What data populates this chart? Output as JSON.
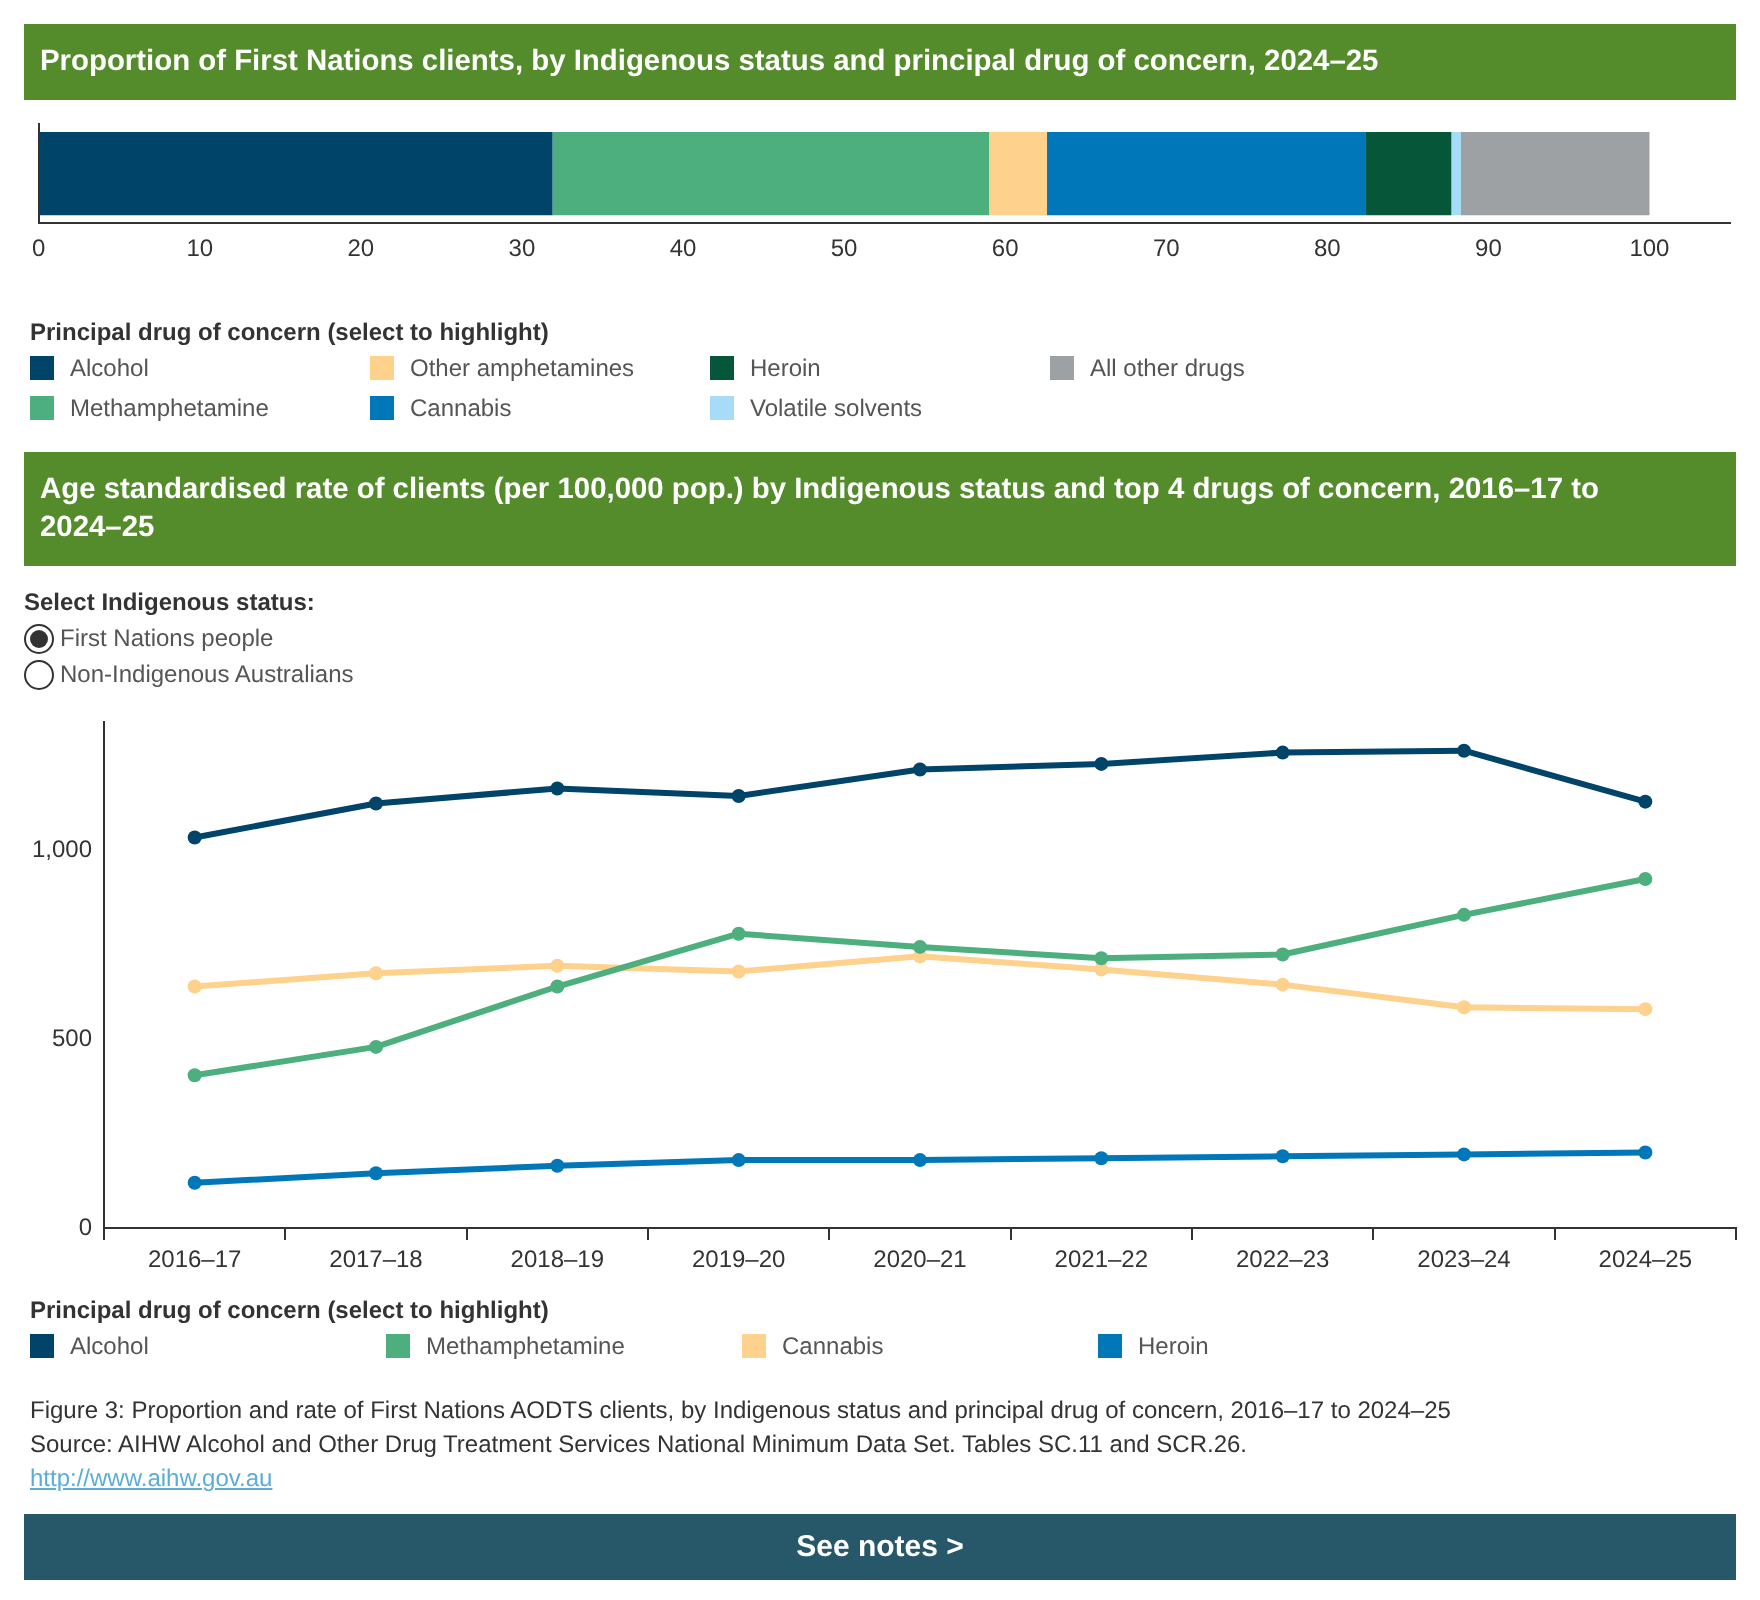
{
  "chart_data": [
    {
      "type": "bar",
      "title": "Proportion of First Nations clients, by Indigenous status and principal drug of concern, 2024–25",
      "orientation": "horizontal",
      "stacked": true,
      "categories": [
        null
      ],
      "series": [
        {
          "name": "Alcohol",
          "color": "#00446a",
          "values": [
            31.9
          ]
        },
        {
          "name": "Methamphetamine",
          "color": "#4caf7d",
          "values": [
            27.1
          ]
        },
        {
          "name": "Other amphetamines",
          "color": "#fed18c",
          "values": [
            3.6
          ]
        },
        {
          "name": "Cannabis",
          "color": "#0077b8",
          "values": [
            19.8
          ]
        },
        {
          "name": "Heroin",
          "color": "#06563a",
          "values": [
            5.3
          ]
        },
        {
          "name": "Volatile solvents",
          "color": "#a6dcf7",
          "values": [
            0.6
          ]
        },
        {
          "name": "All other drugs",
          "color": "#9ea1a3",
          "values": [
            11.7
          ]
        }
      ],
      "xlim": [
        0,
        105
      ],
      "xticks": [
        0,
        10,
        20,
        30,
        40,
        50,
        60,
        70,
        80,
        90,
        100
      ],
      "tick_labels": "x",
      "legend": "bottom",
      "legend_title": "Principal drug of concern (select to highlight)"
    },
    {
      "type": "line",
      "title": "Age standardised rate of clients (per 100,000 pop.) by Indigenous status and top 4 drugs of concern, 2016–17 to 2024–25",
      "annotations": [
        "Select Indigenous status:",
        "First Nations people",
        "Non-Indigenous Australians"
      ],
      "categories": [
        "2016–17",
        "2017–18",
        "2018–19",
        "2019–20",
        "2020–21",
        "2021–22",
        "2022–23",
        "2023–24",
        "2024–25"
      ],
      "series": [
        {
          "name": "Alcohol",
          "color": "#00446a",
          "values": [
            1035,
            1125,
            1165,
            1145,
            1215,
            1230,
            1260,
            1265,
            1130
          ]
        },
        {
          "name": "Methamphetamine",
          "color": "#4caf7d",
          "values": [
            405,
            480,
            640,
            780,
            745,
            715,
            725,
            830,
            925
          ]
        },
        {
          "name": "Cannabis",
          "color": "#fed18c",
          "values": [
            640,
            675,
            695,
            680,
            720,
            685,
            645,
            585,
            580
          ]
        },
        {
          "name": "Heroin",
          "color": "#0077b8",
          "values": [
            120,
            145,
            165,
            180,
            180,
            185,
            190,
            195,
            200
          ]
        }
      ],
      "ylim": [
        0,
        1340
      ],
      "yticks": [
        0,
        500,
        {
          "value": 1000,
          "label": "1,000"
        }
      ],
      "marker": "circle",
      "legend": "bottom",
      "legend_title": "Principal drug of concern (select to highlight)"
    },
    {
      "type": "other",
      "annotations": [
        "Figure 3: Proportion and rate of First Nations AODTS clients, by Indigenous status and principal drug of concern, 2016–17 to 2024–25",
        "Source: AIHW Alcohol and Other Drug Treatment Services National Minimum Data Set. Tables SC.11 and SCR.26.",
        "http://www.aihw.gov.au",
        "See notes >"
      ]
    }
  ]
}
